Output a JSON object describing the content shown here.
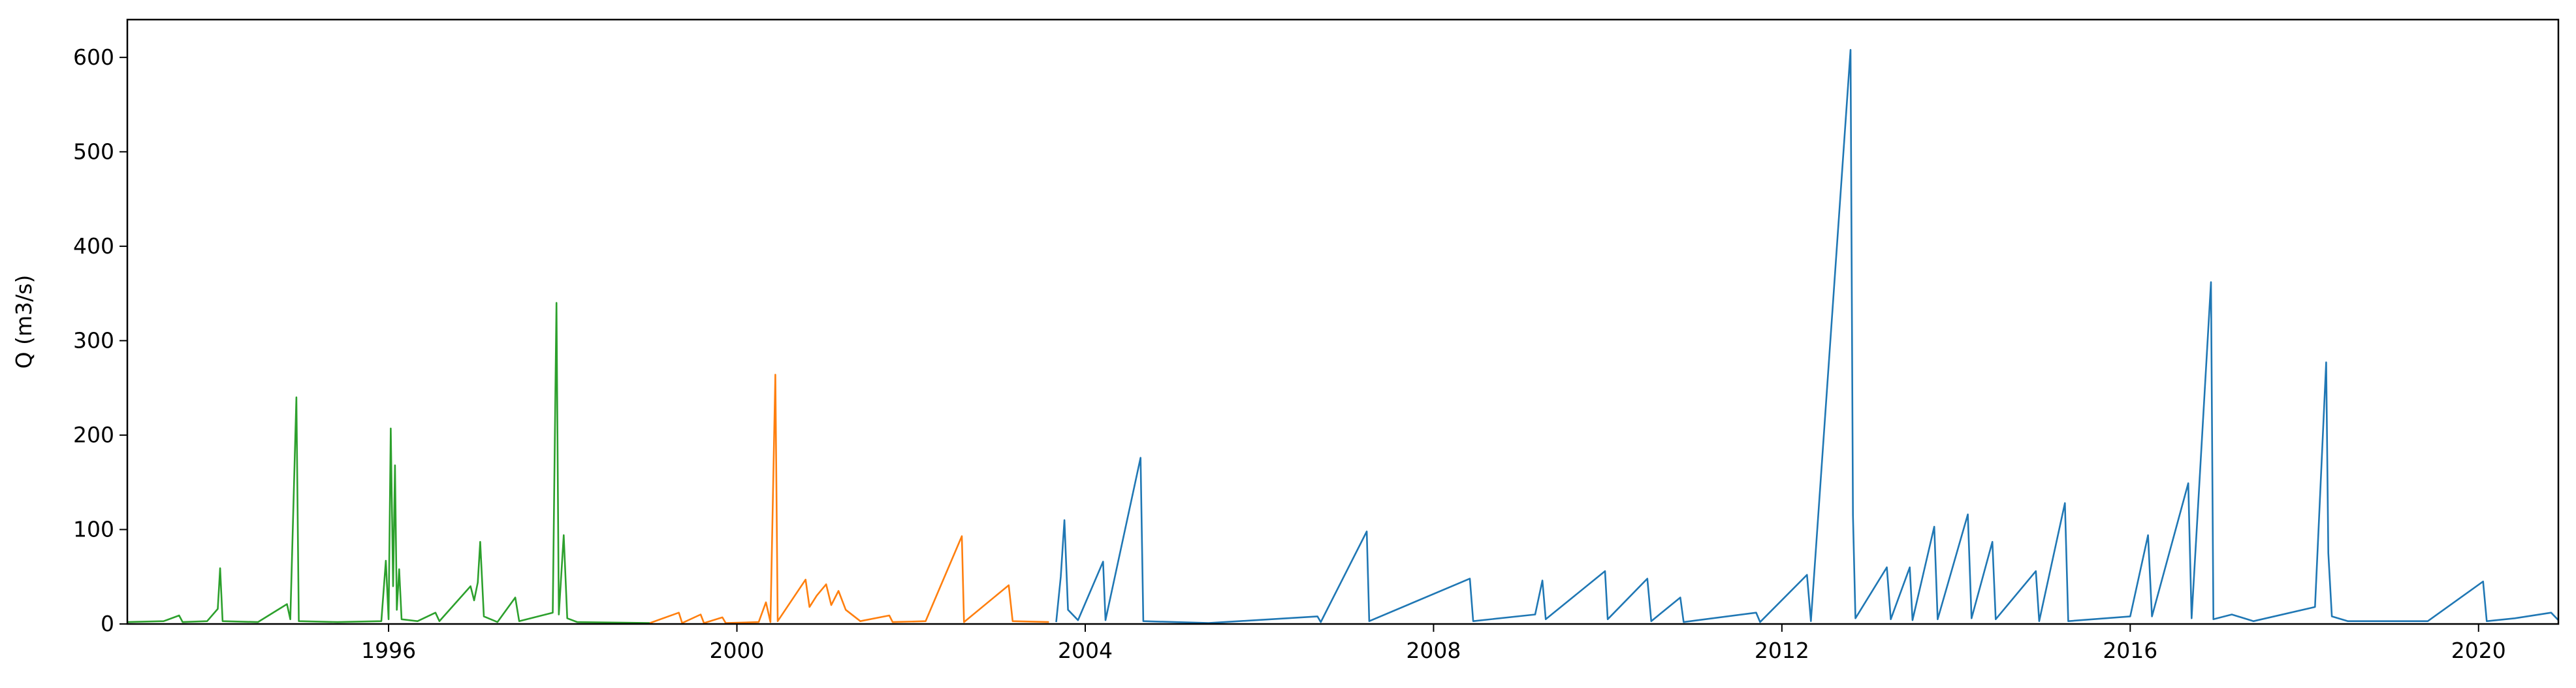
{
  "chart_data": {
    "type": "line",
    "title": "",
    "xlabel": "",
    "ylabel": "Q (m3/s)",
    "xlim": [
      "1993-01-01",
      "2020-12-01"
    ],
    "ylim": [
      0,
      640
    ],
    "xticks": [
      "1996",
      "2000",
      "2004",
      "2008",
      "2012",
      "2016",
      "2020"
    ],
    "yticks": [
      0,
      100,
      200,
      300,
      400,
      500,
      600
    ],
    "grid": false,
    "legend": "none",
    "series": [
      {
        "color": "#2ca02c",
        "points": [
          [
            "1993-01-01",
            2
          ],
          [
            "1993-06-01",
            3
          ],
          [
            "1993-08-05",
            9
          ],
          [
            "1993-08-20",
            2
          ],
          [
            "1993-12-01",
            3
          ],
          [
            "1994-01-15",
            16
          ],
          [
            "1994-01-25",
            59
          ],
          [
            "1994-02-05",
            3
          ],
          [
            "1994-07-01",
            2
          ],
          [
            "1994-11-01",
            21
          ],
          [
            "1994-11-15",
            5
          ],
          [
            "1994-12-10",
            240
          ],
          [
            "1994-12-20",
            3
          ],
          [
            "1995-06-01",
            2
          ],
          [
            "1995-12-01",
            3
          ],
          [
            "1995-12-20",
            67
          ],
          [
            "1996-01-01",
            5
          ],
          [
            "1996-01-10",
            207
          ],
          [
            "1996-01-20",
            40
          ],
          [
            "1996-01-28",
            168
          ],
          [
            "1996-02-05",
            15
          ],
          [
            "1996-02-15",
            58
          ],
          [
            "1996-02-25",
            5
          ],
          [
            "1996-05-01",
            3
          ],
          [
            "1996-07-15",
            12
          ],
          [
            "1996-08-01",
            3
          ],
          [
            "1996-12-10",
            40
          ],
          [
            "1996-12-25",
            25
          ],
          [
            "1997-01-10",
            44
          ],
          [
            "1997-01-20",
            87
          ],
          [
            "1997-02-05",
            8
          ],
          [
            "1997-04-01",
            2
          ],
          [
            "1997-06-15",
            28
          ],
          [
            "1997-07-01",
            3
          ],
          [
            "1997-11-20",
            12
          ],
          [
            "1997-12-05",
            340
          ],
          [
            "1997-12-15",
            10
          ],
          [
            "1998-01-05",
            94
          ],
          [
            "1998-01-20",
            6
          ],
          [
            "1998-03-01",
            2
          ],
          [
            "1998-12-31",
            1
          ]
        ]
      },
      {
        "color": "#ff7f0e",
        "points": [
          [
            "1999-01-01",
            1
          ],
          [
            "1999-05-01",
            12
          ],
          [
            "1999-05-15",
            1
          ],
          [
            "1999-08-01",
            10
          ],
          [
            "1999-08-15",
            1
          ],
          [
            "1999-11-01",
            7
          ],
          [
            "1999-11-15",
            1
          ],
          [
            "2000-04-01",
            2
          ],
          [
            "2000-05-01",
            23
          ],
          [
            "2000-05-20",
            2
          ],
          [
            "2000-06-10",
            264
          ],
          [
            "2000-06-20",
            3
          ],
          [
            "2000-10-15",
            47
          ],
          [
            "2000-11-01",
            18
          ],
          [
            "2000-12-01",
            30
          ],
          [
            "2001-01-10",
            42
          ],
          [
            "2001-02-01",
            20
          ],
          [
            "2001-03-01",
            35
          ],
          [
            "2001-04-01",
            15
          ],
          [
            "2001-06-01",
            3
          ],
          [
            "2001-10-01",
            9
          ],
          [
            "2001-10-15",
            2
          ],
          [
            "2002-03-01",
            3
          ],
          [
            "2002-08-01",
            93
          ],
          [
            "2002-08-10",
            2
          ],
          [
            "2003-02-15",
            41
          ],
          [
            "2003-03-01",
            3
          ],
          [
            "2003-08-01",
            2
          ]
        ]
      },
      {
        "color": "#1f77b4",
        "points": [
          [
            "2003-09-01",
            2
          ],
          [
            "2003-09-20",
            50
          ],
          [
            "2003-10-05",
            110
          ],
          [
            "2003-10-20",
            15
          ],
          [
            "2003-12-01",
            4
          ],
          [
            "2004-03-15",
            66
          ],
          [
            "2004-03-25",
            4
          ],
          [
            "2004-08-20",
            176
          ],
          [
            "2004-09-01",
            3
          ],
          [
            "2005-06-01",
            1
          ],
          [
            "2006-09-01",
            8
          ],
          [
            "2006-09-15",
            2
          ],
          [
            "2007-03-25",
            98
          ],
          [
            "2007-04-05",
            3
          ],
          [
            "2008-06-01",
            48
          ],
          [
            "2008-06-15",
            3
          ],
          [
            "2009-03-01",
            10
          ],
          [
            "2009-04-01",
            46
          ],
          [
            "2009-04-15",
            5
          ],
          [
            "2009-12-20",
            56
          ],
          [
            "2010-01-01",
            5
          ],
          [
            "2010-06-15",
            48
          ],
          [
            "2010-07-01",
            3
          ],
          [
            "2010-11-01",
            28
          ],
          [
            "2010-11-15",
            2
          ],
          [
            "2011-09-15",
            12
          ],
          [
            "2011-10-01",
            2
          ],
          [
            "2012-04-15",
            52
          ],
          [
            "2012-05-01",
            3
          ],
          [
            "2012-10-15",
            608
          ],
          [
            "2012-10-25",
            115
          ],
          [
            "2012-11-05",
            6
          ],
          [
            "2013-03-15",
            60
          ],
          [
            "2013-04-01",
            5
          ],
          [
            "2013-06-20",
            60
          ],
          [
            "2013-07-01",
            4
          ],
          [
            "2013-10-01",
            103
          ],
          [
            "2013-10-15",
            5
          ],
          [
            "2014-02-20",
            116
          ],
          [
            "2014-03-05",
            6
          ],
          [
            "2014-06-01",
            87
          ],
          [
            "2014-06-15",
            5
          ],
          [
            "2014-12-01",
            56
          ],
          [
            "2014-12-15",
            3
          ],
          [
            "2015-04-01",
            128
          ],
          [
            "2015-04-15",
            3
          ],
          [
            "2016-01-01",
            8
          ],
          [
            "2016-03-15",
            94
          ],
          [
            "2016-04-01",
            8
          ],
          [
            "2016-09-01",
            149
          ],
          [
            "2016-09-15",
            6
          ],
          [
            "2016-12-05",
            362
          ],
          [
            "2016-12-15",
            5
          ],
          [
            "2017-03-01",
            10
          ],
          [
            "2017-06-01",
            3
          ],
          [
            "2018-02-15",
            18
          ],
          [
            "2018-04-01",
            277
          ],
          [
            "2018-04-10",
            75
          ],
          [
            "2018-04-25",
            8
          ],
          [
            "2018-07-01",
            3
          ],
          [
            "2019-06-01",
            3
          ],
          [
            "2020-01-20",
            45
          ],
          [
            "2020-02-05",
            3
          ],
          [
            "2020-06-01",
            6
          ],
          [
            "2020-11-01",
            12
          ],
          [
            "2020-12-01",
            4
          ]
        ]
      }
    ]
  }
}
